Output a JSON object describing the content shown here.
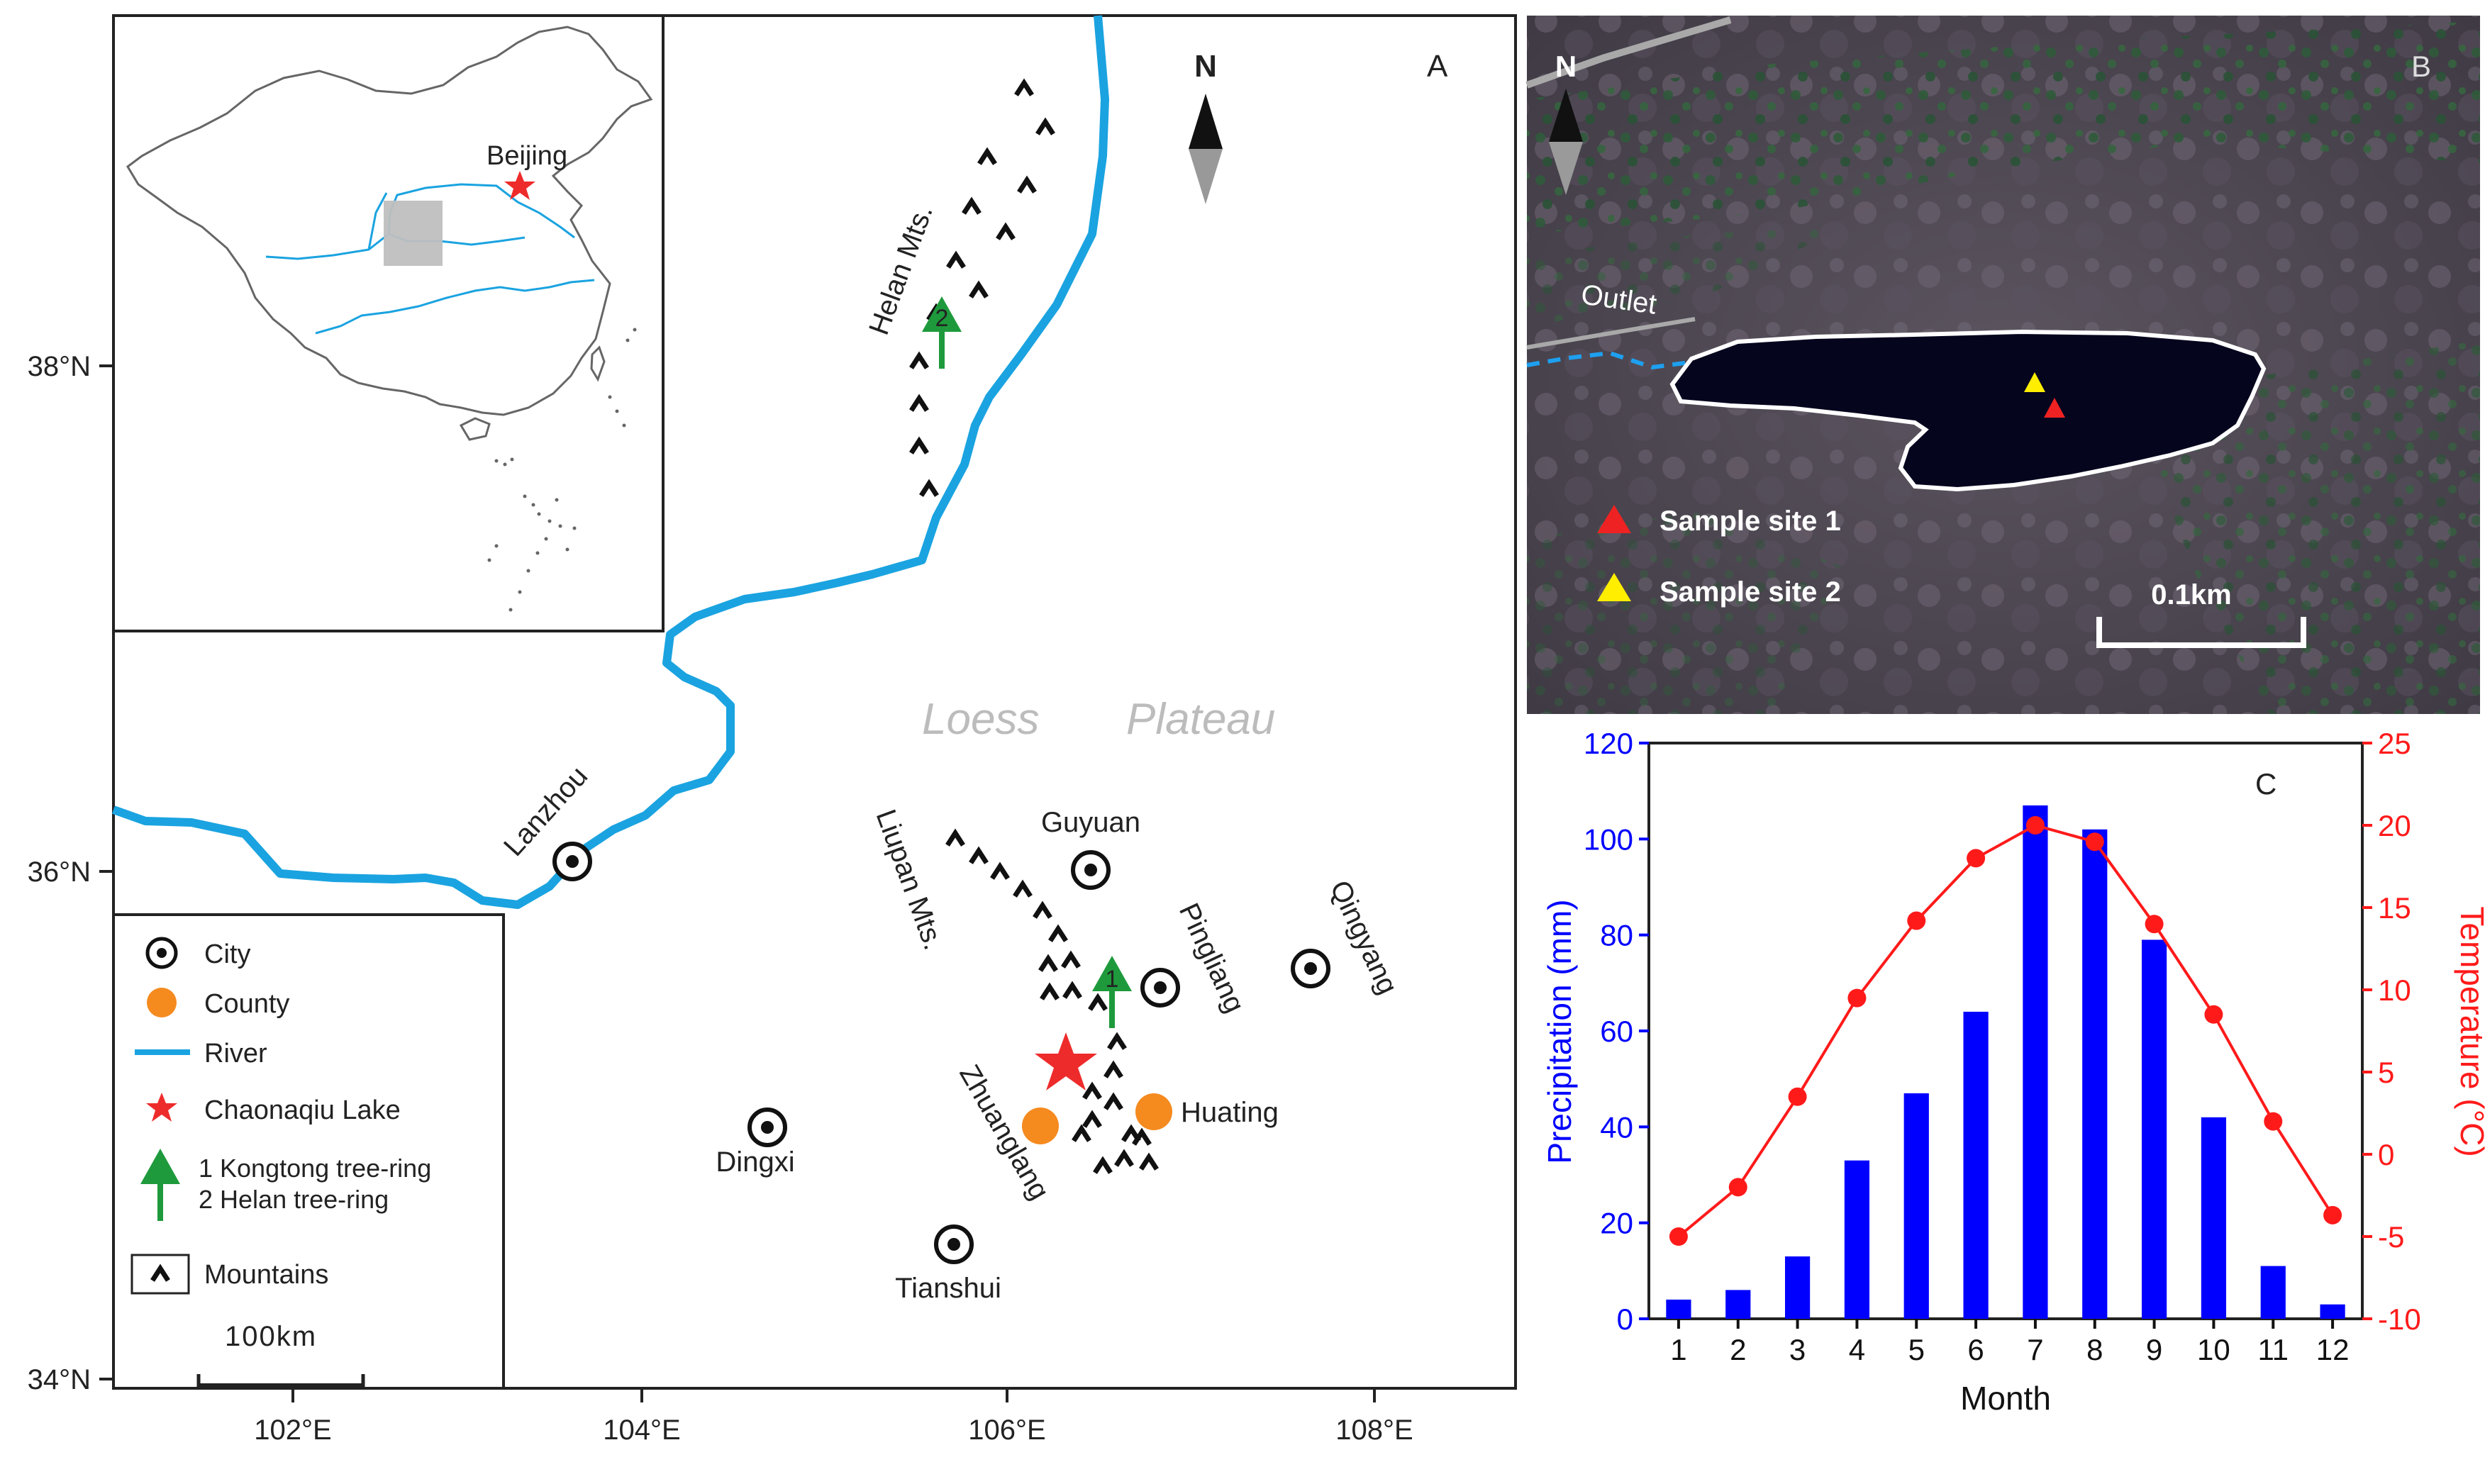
{
  "panel_a": {
    "label": "A",
    "north": "N",
    "y_ticks": [
      {
        "label": "38°N"
      },
      {
        "label": "36°N"
      },
      {
        "label": "34°N"
      }
    ],
    "x_ticks": [
      {
        "label": "102°E"
      },
      {
        "label": "104°E"
      },
      {
        "label": "106°E"
      },
      {
        "label": "108°E"
      }
    ],
    "inset": {
      "beijing": "Beijing"
    },
    "places": {
      "lanzhou": "Lanzhou",
      "dingxi": "Dingxi",
      "guyuan": "Guyuan",
      "pingliang": "Pingliang",
      "qingyang": "Qingyang",
      "huating": "Huating",
      "zhuanglang": "Zhuanglang",
      "tianshui": "Tianshui",
      "helan_mts": "Helan Mts.",
      "liupan_mts": "Liupan Mts.",
      "loess": "Loess",
      "plateau": "Plateau",
      "tree_1": "1",
      "tree_2": "2"
    },
    "legend": {
      "city": "City",
      "county": "County",
      "river": "River",
      "lake": "Chaonaqiu Lake",
      "tree1": "1 Kongtong tree-ring",
      "tree2": "2 Helan tree-ring",
      "mountains": "Mountains",
      "scale": "100km"
    },
    "colors": {
      "river": "#1aa3e0",
      "city": "#111111",
      "county": "#f58a1f",
      "lake_star": "#ee2b2b",
      "tree": "#1e9a3c"
    }
  },
  "panel_b": {
    "label": "B",
    "north": "N",
    "outlet": "Outlet",
    "site1": "Sample site 1",
    "site2": "Sample site 2",
    "scale": "0.1km",
    "colors": {
      "site1": "#ee2222",
      "site2": "#ffee00"
    }
  },
  "chart_data": {
    "type": "bar",
    "label": "C",
    "categories": [
      "1",
      "2",
      "3",
      "4",
      "5",
      "6",
      "7",
      "8",
      "9",
      "10",
      "11",
      "12"
    ],
    "xlabel": "Month",
    "series": [
      {
        "type": "bar",
        "axis": "left",
        "color": "#0000ff",
        "values": [
          4,
          6,
          13,
          33,
          47,
          64,
          107,
          102,
          79,
          42,
          11,
          3
        ]
      },
      {
        "type": "line",
        "axis": "right",
        "color": "#ff1a1a",
        "values": [
          -5,
          -2,
          3.5,
          9.5,
          14.2,
          18,
          20,
          19,
          14,
          8.5,
          2,
          -3.7
        ]
      }
    ],
    "y_left": {
      "label": "Precipitation (mm)",
      "range": [
        0,
        120
      ],
      "ticks": [
        0,
        20,
        40,
        60,
        80,
        100,
        120
      ]
    },
    "y_right": {
      "label": "Temperature (°C)",
      "range": [
        -10,
        25
      ],
      "ticks": [
        -10,
        -5,
        0,
        5,
        10,
        15,
        20,
        25
      ]
    }
  }
}
